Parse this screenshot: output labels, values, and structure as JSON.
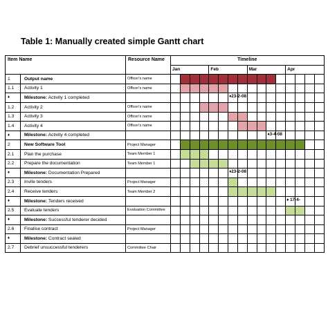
{
  "title": "Table 1: Manually created simple Gantt chart",
  "headers": {
    "item_name": "Item Name",
    "resource_name": "Resource Name",
    "timeline": "Timeline"
  },
  "months": [
    "Jan",
    "Feb",
    "Mar",
    "Apr"
  ],
  "colors": {
    "output_dark": "#a0303a",
    "activity_light": "#e2a4a8",
    "software_dark": "#6f8f2a",
    "activity_green": "#c5dc97"
  },
  "diamond_symbol": "♦",
  "rows": [
    {
      "num": "1",
      "name": "Output name",
      "bold": true,
      "resource": "Officer's name",
      "bar": [
        1,
        10
      ],
      "color": "#a0303a"
    },
    {
      "num": "1.1",
      "name": "Activity 1",
      "resource": "Officer's name",
      "bar": [
        1,
        5
      ],
      "color": "#e2a4a8"
    },
    {
      "num": "",
      "diamond": true,
      "label_bold": "Milestone:",
      "label_rest": " Activity 1 completed",
      "resource": "",
      "milestone": "♦23-2-08",
      "ms_col": 6
    },
    {
      "num": "1.2",
      "name": "Activity 2",
      "resource": "Officer's name",
      "bar": [
        3,
        5
      ],
      "color": "#e2a4a8"
    },
    {
      "num": "1.3",
      "name": "Activity 3",
      "resource": "Officer's name",
      "bar": [
        6,
        7
      ],
      "color": "#e2a4a8"
    },
    {
      "num": "1.4",
      "name": "Activity 4",
      "resource": "Officer's name",
      "bar": [
        7,
        9
      ],
      "color": "#e2a4a8"
    },
    {
      "num": "",
      "diamond": true,
      "label_bold": "Milestone:",
      "label_rest": " Activity 4 completed",
      "resource": "",
      "milestone": "♦3-4-08",
      "ms_col": 10
    },
    {
      "num": "2",
      "name": "New Software Tool",
      "bold": true,
      "resource": "Project Manager",
      "bar": [
        1,
        13
      ],
      "color": "#6f8f2a"
    },
    {
      "num": "2.1",
      "name": "Plan the purchase",
      "resource": "Team Member 1",
      "bar": [
        1,
        3
      ],
      "color": "#c5dc97"
    },
    {
      "num": "2.2",
      "name": "Prepare the documentation",
      "resource": "Team Member 1",
      "bar": [
        2,
        5
      ],
      "color": "#c5dc97"
    },
    {
      "num": "",
      "diamond": true,
      "label_bold": "Milestone:",
      "label_rest": " Documentation Prepared",
      "resource": "",
      "milestone": "♦23-2-08",
      "ms_col": 6
    },
    {
      "num": "2.3",
      "name": "Invite tenders",
      "resource": "Project Manager",
      "bar": [
        6,
        6
      ],
      "color": "#c5dc97"
    },
    {
      "num": "2.4",
      "name": "Receive tenders",
      "resource": "Team Member 2",
      "bar": [
        6,
        10
      ],
      "color": "#c5dc97"
    },
    {
      "num": "",
      "diamond": true,
      "label_bold": "Milestone:",
      "label_rest": " Tenders received",
      "resource": "",
      "milestone": "♦ 17-4-",
      "ms_col": 12
    },
    {
      "num": "2.5",
      "name": "Evaluate tenders",
      "resource": "Evaluation Committee",
      "tall": true,
      "bar": [
        12,
        13
      ],
      "color": "#c5dc97"
    },
    {
      "num": "",
      "diamond": true,
      "label_bold": "Milestone:",
      "label_rest": " Successful tenderer decided",
      "resource": ""
    },
    {
      "num": "2.6",
      "name": "Finalise contract",
      "resource": "Project Manager"
    },
    {
      "num": "",
      "diamond": true,
      "label_bold": "Milestone:",
      "label_rest": " Contract sealed",
      "resource": ""
    },
    {
      "num": "2.7",
      "name": "Debrief unsuccessful tenderers",
      "resource": "Committee Chair"
    }
  ]
}
